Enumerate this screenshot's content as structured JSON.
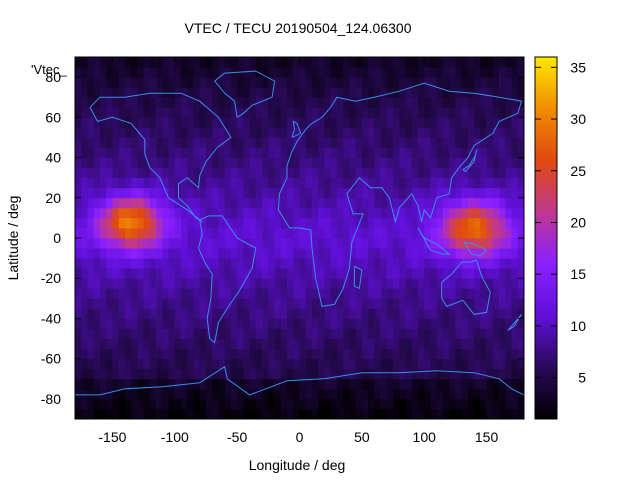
{
  "chart_data": {
    "type": "heatmap",
    "title": "VTEC / TECU 20190504_124.06300",
    "xlabel": "Longitude / deg",
    "ylabel": "Latitude / deg",
    "series_label": "'Vtec_",
    "xlim": [
      -180,
      180
    ],
    "ylim": [
      -90,
      90
    ],
    "x_ticks": [
      -150,
      -100,
      -50,
      0,
      50,
      100,
      150
    ],
    "y_ticks": [
      -80,
      -60,
      -40,
      -20,
      0,
      20,
      40,
      60,
      80
    ],
    "colorbar": {
      "range": [
        1,
        36
      ],
      "ticks": [
        5,
        10,
        15,
        20,
        25,
        30,
        35
      ],
      "colormap": [
        "#000000",
        "#2a0a5a",
        "#6010d8",
        "#8a20ff",
        "#c03890",
        "#e04a10",
        "#f08c00",
        "#ffe800"
      ]
    },
    "grid": false,
    "features": [
      {
        "lon": -135,
        "lat": 8,
        "peak": 31,
        "width_lon": 28,
        "width_lat": 14
      },
      {
        "lon": 140,
        "lat": 5,
        "peak": 29,
        "width_lon": 30,
        "width_lat": 15
      }
    ],
    "background_levels": {
      "equator": 11,
      "mid_latitude": 8,
      "polar": 3
    }
  }
}
